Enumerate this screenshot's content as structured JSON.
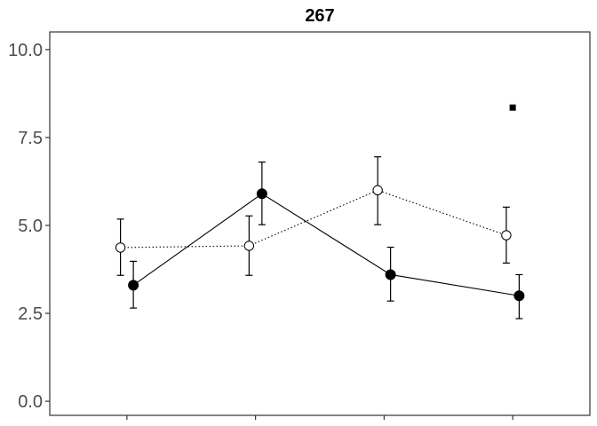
{
  "chart_data": {
    "type": "line",
    "title": "267",
    "xlabel": "",
    "ylabel": "",
    "ylim": [
      -0.4,
      10.5
    ],
    "yticks": [
      0.0,
      2.5,
      5.0,
      7.5,
      10.0
    ],
    "ytick_labels": [
      "0.0",
      "2.5",
      "5.0",
      "7.5",
      "10.0"
    ],
    "categories": [
      "",
      "",
      "",
      ""
    ],
    "grid": false,
    "legend": "none",
    "series": [
      {
        "style": "solid",
        "marker": "filled-circle",
        "color": "#000000",
        "values": [
          3.3,
          5.9,
          3.6,
          3.0
        ],
        "err_low": [
          2.65,
          5.02,
          2.85,
          2.35
        ],
        "err_high": [
          3.98,
          6.8,
          4.38,
          3.6
        ]
      },
      {
        "style": "dotted",
        "marker": "open-circle",
        "color": "#000000",
        "values": [
          4.37,
          4.42,
          6.0,
          4.72
        ],
        "err_low": [
          3.58,
          3.58,
          5.02,
          3.93
        ],
        "err_high": [
          5.18,
          5.27,
          6.95,
          5.52
        ]
      }
    ],
    "extra_points": [
      {
        "category_index": 3,
        "value": 8.35,
        "marker": "filled-square",
        "color": "#000000"
      }
    ]
  }
}
